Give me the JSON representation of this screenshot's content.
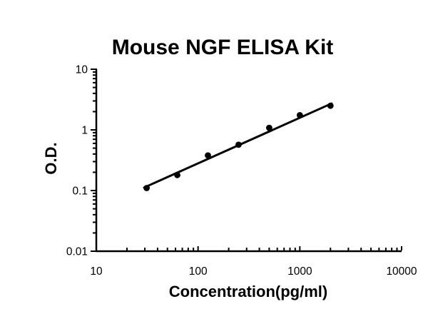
{
  "page": {
    "background_color": "#ffffff"
  },
  "chart_data": {
    "type": "scatter",
    "title": "Mouse NGF ELISA Kit",
    "xlabel": "Concentration(pg/ml)",
    "ylabel": "O.D.",
    "xscale": "log",
    "yscale": "log",
    "xlim": [
      10,
      10000
    ],
    "ylim": [
      0.01,
      10
    ],
    "x_ticks": [
      "10",
      "100",
      "1000",
      "10000"
    ],
    "y_ticks": [
      "0.01",
      "0.1",
      "1",
      "10"
    ],
    "grid": "off",
    "legend": "none",
    "series": [
      {
        "name": "standard-curve-points",
        "type": "scatter",
        "x": [
          31.25,
          62.5,
          125,
          250,
          500,
          1000,
          2000
        ],
        "y": [
          0.11,
          0.18,
          0.38,
          0.57,
          1.08,
          1.75,
          2.5
        ]
      },
      {
        "name": "fit-line",
        "type": "line",
        "x": [
          29.5,
          2050
        ],
        "y": [
          0.112,
          2.72
        ]
      }
    ],
    "colors": {
      "marker": "#000000",
      "line": "#000000",
      "axis": "#000000",
      "tick_label": "#000000",
      "title": "#000000"
    }
  }
}
